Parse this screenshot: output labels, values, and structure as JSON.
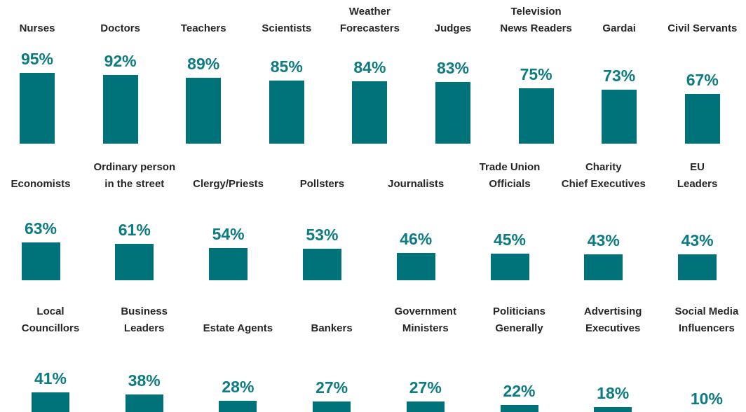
{
  "chart_data": [
    {
      "type": "bar",
      "color": "#00737a",
      "categories": [
        "Nurses",
        "Doctors",
        "Teachers",
        "Scientists",
        "Weather\nForecasters",
        "Judges",
        "Television\nNews Readers",
        "Gardai",
        "Civil Servants"
      ],
      "values": [
        95,
        92,
        89,
        85,
        84,
        83,
        75,
        73,
        67
      ],
      "value_labels": [
        "95%",
        "92%",
        "89%",
        "85%",
        "84%",
        "83%",
        "75%",
        "73%",
        "67%"
      ]
    },
    {
      "type": "bar",
      "color": "#00737a",
      "categories": [
        "Economists",
        "Ordinary person\nin the street",
        "Clergy/Priests",
        "Pollsters",
        "Journalists",
        "Trade Union\nOfficials",
        "Charity\nChief Executives",
        "EU\nLeaders"
      ],
      "values": [
        63,
        61,
        54,
        53,
        46,
        45,
        43,
        43
      ],
      "value_labels": [
        "63%",
        "61%",
        "54%",
        "53%",
        "46%",
        "45%",
        "43%",
        "43%"
      ]
    },
    {
      "type": "bar",
      "color": "#00737a",
      "categories": [
        "Local\nCouncillors",
        "Business\nLeaders",
        "Estate Agents",
        "Bankers",
        "Government\nMinisters",
        "Politicians\nGenerally",
        "Advertising\nExecutives",
        "Social Media\nInfluencers"
      ],
      "values": [
        41,
        38,
        28,
        27,
        27,
        22,
        18,
        10
      ],
      "value_labels": [
        "41%",
        "38%",
        "28%",
        "27%",
        "27%",
        "22%",
        "18%",
        "10%"
      ]
    }
  ]
}
